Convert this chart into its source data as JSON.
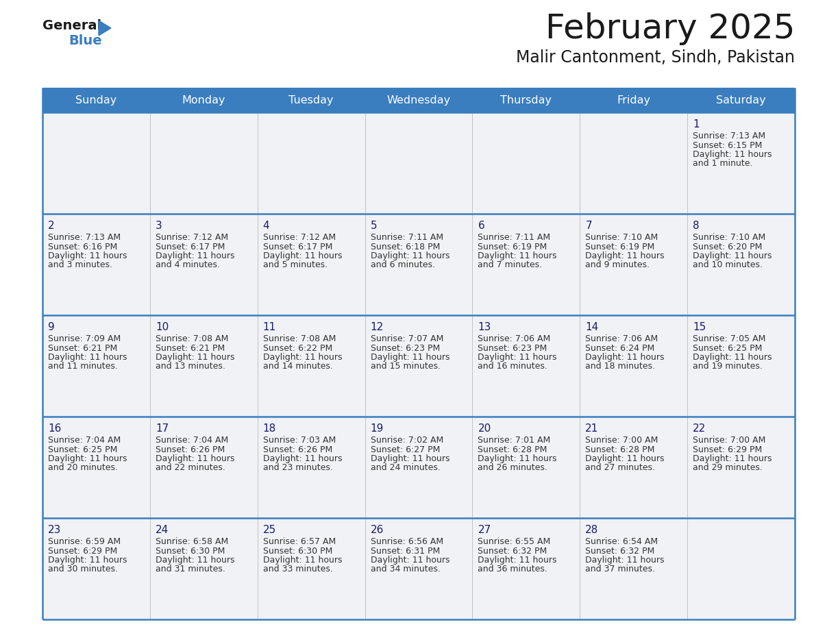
{
  "title": "February 2025",
  "subtitle": "Malir Cantonment, Sindh, Pakistan",
  "header_color": "#3a7ebf",
  "header_text_color": "#ffffff",
  "cell_bg": "#f0f2f5",
  "day_number_color": "#1a1a6e",
  "text_color": "#333333",
  "line_color": "#3a7ebf",
  "days_of_week": [
    "Sunday",
    "Monday",
    "Tuesday",
    "Wednesday",
    "Thursday",
    "Friday",
    "Saturday"
  ],
  "weeks": [
    [
      {
        "day": null
      },
      {
        "day": null
      },
      {
        "day": null
      },
      {
        "day": null
      },
      {
        "day": null
      },
      {
        "day": null
      },
      {
        "day": 1,
        "sunrise": "7:13 AM",
        "sunset": "6:15 PM",
        "daylight": "11 hours",
        "daylight2": "and 1 minute."
      }
    ],
    [
      {
        "day": 2,
        "sunrise": "7:13 AM",
        "sunset": "6:16 PM",
        "daylight": "11 hours",
        "daylight2": "and 3 minutes."
      },
      {
        "day": 3,
        "sunrise": "7:12 AM",
        "sunset": "6:17 PM",
        "daylight": "11 hours",
        "daylight2": "and 4 minutes."
      },
      {
        "day": 4,
        "sunrise": "7:12 AM",
        "sunset": "6:17 PM",
        "daylight": "11 hours",
        "daylight2": "and 5 minutes."
      },
      {
        "day": 5,
        "sunrise": "7:11 AM",
        "sunset": "6:18 PM",
        "daylight": "11 hours",
        "daylight2": "and 6 minutes."
      },
      {
        "day": 6,
        "sunrise": "7:11 AM",
        "sunset": "6:19 PM",
        "daylight": "11 hours",
        "daylight2": "and 7 minutes."
      },
      {
        "day": 7,
        "sunrise": "7:10 AM",
        "sunset": "6:19 PM",
        "daylight": "11 hours",
        "daylight2": "and 9 minutes."
      },
      {
        "day": 8,
        "sunrise": "7:10 AM",
        "sunset": "6:20 PM",
        "daylight": "11 hours",
        "daylight2": "and 10 minutes."
      }
    ],
    [
      {
        "day": 9,
        "sunrise": "7:09 AM",
        "sunset": "6:21 PM",
        "daylight": "11 hours",
        "daylight2": "and 11 minutes."
      },
      {
        "day": 10,
        "sunrise": "7:08 AM",
        "sunset": "6:21 PM",
        "daylight": "11 hours",
        "daylight2": "and 13 minutes."
      },
      {
        "day": 11,
        "sunrise": "7:08 AM",
        "sunset": "6:22 PM",
        "daylight": "11 hours",
        "daylight2": "and 14 minutes."
      },
      {
        "day": 12,
        "sunrise": "7:07 AM",
        "sunset": "6:23 PM",
        "daylight": "11 hours",
        "daylight2": "and 15 minutes."
      },
      {
        "day": 13,
        "sunrise": "7:06 AM",
        "sunset": "6:23 PM",
        "daylight": "11 hours",
        "daylight2": "and 16 minutes."
      },
      {
        "day": 14,
        "sunrise": "7:06 AM",
        "sunset": "6:24 PM",
        "daylight": "11 hours",
        "daylight2": "and 18 minutes."
      },
      {
        "day": 15,
        "sunrise": "7:05 AM",
        "sunset": "6:25 PM",
        "daylight": "11 hours",
        "daylight2": "and 19 minutes."
      }
    ],
    [
      {
        "day": 16,
        "sunrise": "7:04 AM",
        "sunset": "6:25 PM",
        "daylight": "11 hours",
        "daylight2": "and 20 minutes."
      },
      {
        "day": 17,
        "sunrise": "7:04 AM",
        "sunset": "6:26 PM",
        "daylight": "11 hours",
        "daylight2": "and 22 minutes."
      },
      {
        "day": 18,
        "sunrise": "7:03 AM",
        "sunset": "6:26 PM",
        "daylight": "11 hours",
        "daylight2": "and 23 minutes."
      },
      {
        "day": 19,
        "sunrise": "7:02 AM",
        "sunset": "6:27 PM",
        "daylight": "11 hours",
        "daylight2": "and 24 minutes."
      },
      {
        "day": 20,
        "sunrise": "7:01 AM",
        "sunset": "6:28 PM",
        "daylight": "11 hours",
        "daylight2": "and 26 minutes."
      },
      {
        "day": 21,
        "sunrise": "7:00 AM",
        "sunset": "6:28 PM",
        "daylight": "11 hours",
        "daylight2": "and 27 minutes."
      },
      {
        "day": 22,
        "sunrise": "7:00 AM",
        "sunset": "6:29 PM",
        "daylight": "11 hours",
        "daylight2": "and 29 minutes."
      }
    ],
    [
      {
        "day": 23,
        "sunrise": "6:59 AM",
        "sunset": "6:29 PM",
        "daylight": "11 hours",
        "daylight2": "and 30 minutes."
      },
      {
        "day": 24,
        "sunrise": "6:58 AM",
        "sunset": "6:30 PM",
        "daylight": "11 hours",
        "daylight2": "and 31 minutes."
      },
      {
        "day": 25,
        "sunrise": "6:57 AM",
        "sunset": "6:30 PM",
        "daylight": "11 hours",
        "daylight2": "and 33 minutes."
      },
      {
        "day": 26,
        "sunrise": "6:56 AM",
        "sunset": "6:31 PM",
        "daylight": "11 hours",
        "daylight2": "and 34 minutes."
      },
      {
        "day": 27,
        "sunrise": "6:55 AM",
        "sunset": "6:32 PM",
        "daylight": "11 hours",
        "daylight2": "and 36 minutes."
      },
      {
        "day": 28,
        "sunrise": "6:54 AM",
        "sunset": "6:32 PM",
        "daylight": "11 hours",
        "daylight2": "and 37 minutes."
      },
      {
        "day": null
      }
    ]
  ],
  "logo_text_general": "General",
  "logo_text_blue": "Blue",
  "logo_color_general": "#1a1a1a",
  "logo_color_blue": "#3a7ebf",
  "logo_triangle_color": "#3a7ebf",
  "figwidth": 11.88,
  "figheight": 9.18,
  "dpi": 100
}
